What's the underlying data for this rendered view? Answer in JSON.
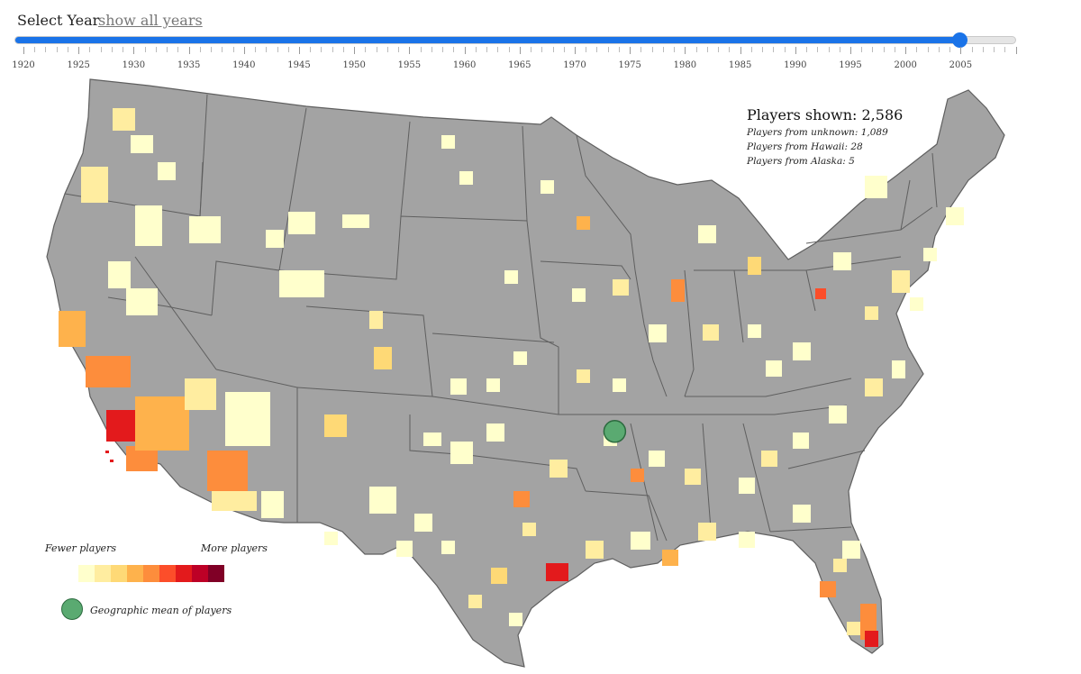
{
  "controls": {
    "select_year_label": "Select Year",
    "show_all_label": "show all years",
    "slider": {
      "min": 1920,
      "max": 2010,
      "value": 2005
    },
    "tick_labels": [
      "1920",
      "1925",
      "1930",
      "1935",
      "1940",
      "1945",
      "1950",
      "1955",
      "1960",
      "1965",
      "1970",
      "1975",
      "1980",
      "1985",
      "1990",
      "1995",
      "2000",
      "2005"
    ]
  },
  "stats": {
    "players_shown": "Players shown: 2,586",
    "from_unknown": "Players from unknown: 1,089",
    "from_hawaii": "Players from Hawaii: 28",
    "from_alaska": "Players from Alaska: 5"
  },
  "legend": {
    "fewer_label": "Fewer players",
    "more_label": "More players",
    "colors": [
      "#ffffcc",
      "#ffeda0",
      "#fed976",
      "#feb24c",
      "#fd8d3c",
      "#fc4e2a",
      "#e31a1c",
      "#bd0026",
      "#800026"
    ],
    "mean_label": "Geographic mean of players",
    "mean_color": "#5aaa71"
  },
  "map": {
    "base_color": "#a3a3a3",
    "border_color": "#5f5f5f",
    "geographic_mean": {
      "lat": 36.2,
      "lon": -92.1
    }
  }
}
